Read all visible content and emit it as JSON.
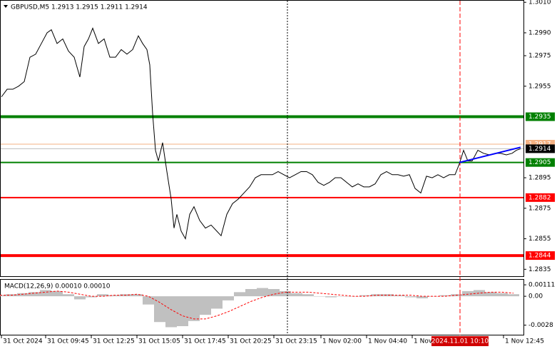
{
  "chart_data": {
    "type": "line",
    "title": "GBPUSD,M5  1.2913 1.2915 1.2911 1.2914",
    "xlim": [
      0,
      367
    ],
    "ylim": [
      1.283,
      1.30115
    ],
    "yticks": [
      {
        "value": 1.301,
        "label": "1.3010"
      },
      {
        "value": 1.299,
        "label": "1.2990"
      },
      1.2975,
      1.2955,
      1.2895,
      1.2875,
      1.2855,
      1.2835
    ],
    "xticks": [
      {
        "value": 1,
        "label": "31 Oct 2024"
      },
      {
        "value": 32,
        "label": "31 Oct 09:45"
      },
      {
        "value": 64,
        "label": "31 Oct 12:25"
      },
      {
        "value": 96,
        "label": "31 Oct 15:05"
      },
      {
        "value": 128,
        "label": "31 Oct 17:45"
      },
      {
        "value": 160,
        "label": "31 Oct 20:25"
      },
      {
        "value": 192,
        "label": "31 Oct 23:15"
      },
      {
        "value": 225,
        "label": "1 Nov 02:00"
      },
      {
        "value": 257,
        "label": "1 Nov 04:40"
      },
      {
        "value": 289,
        "label": "1 Nov"
      },
      {
        "value": 353,
        "label": "1 Nov 12:45"
      }
    ],
    "series": [
      {
        "color": "#000000",
        "x": [
          1,
          5,
          9,
          13,
          17,
          21,
          25,
          29,
          33,
          36,
          40,
          44,
          48,
          52,
          56,
          59,
          62,
          65,
          69,
          73,
          77,
          81,
          85,
          89,
          93,
          97,
          100,
          103,
          105,
          107,
          109,
          111,
          114,
          117,
          120,
          122,
          124,
          127,
          130,
          133,
          136,
          140,
          144,
          148,
          152,
          155,
          159,
          163,
          167,
          171,
          175,
          179,
          183,
          187,
          191,
          195,
          199,
          203,
          207,
          211,
          215,
          219,
          223,
          227,
          231,
          235,
          239,
          243,
          247,
          251,
          255,
          259,
          263,
          267,
          271,
          275,
          279,
          283,
          287,
          291,
          295,
          299,
          303,
          307,
          311,
          315,
          319,
          322,
          325,
          328,
          331,
          335,
          339,
          343,
          347,
          351,
          355,
          359,
          362,
          365
        ],
        "values": [
          1.2948,
          1.2953,
          1.2953,
          1.2955,
          1.2958,
          1.2974,
          1.2976,
          1.2983,
          1.299,
          1.2992,
          1.2983,
          1.2986,
          1.2978,
          1.2974,
          1.2961,
          1.2981,
          1.2986,
          1.2993,
          1.2983,
          1.2986,
          1.2974,
          1.2974,
          1.2979,
          1.2976,
          1.2979,
          1.2988,
          1.2983,
          1.2979,
          1.2969,
          1.2937,
          1.2913,
          1.2906,
          1.2918,
          1.2899,
          1.2881,
          1.2862,
          1.2871,
          1.286,
          1.2855,
          1.2871,
          1.2876,
          1.2867,
          1.2862,
          1.2864,
          1.286,
          1.2857,
          1.2871,
          1.2878,
          1.2881,
          1.2885,
          1.2889,
          1.2895,
          1.2897,
          1.2897,
          1.2897,
          1.2899,
          1.2897,
          1.2895,
          1.2897,
          1.2899,
          1.2899,
          1.2897,
          1.2892,
          1.289,
          1.2892,
          1.2895,
          1.2895,
          1.2892,
          1.2889,
          1.2891,
          1.2889,
          1.2889,
          1.2891,
          1.2897,
          1.2899,
          1.2897,
          1.2897,
          1.2896,
          1.2897,
          1.2888,
          1.2885,
          1.2896,
          1.2895,
          1.2897,
          1.2895,
          1.2897,
          1.2897,
          1.2904,
          1.2913,
          1.2906,
          1.2906,
          1.2913,
          1.2911,
          1.291,
          1.2911,
          1.2911,
          1.291,
          1.2911,
          1.2913,
          1.2914
        ]
      }
    ],
    "levels": [
      {
        "value": 1.2935,
        "color": "#008000",
        "width": 4
      },
      {
        "value": 1.2917,
        "color": "#f4b183",
        "width": 1
      },
      {
        "value": 1.2914,
        "color": "#000000",
        "width": 1
      },
      {
        "value": 1.2905,
        "color": "#008000",
        "width": 2
      },
      {
        "value": 1.2882,
        "color": "#ff0000",
        "width": 2
      },
      {
        "value": 1.2844,
        "color": "#ff0000",
        "width": 4
      }
    ],
    "vlines": [
      {
        "value": 201.5,
        "color": "#000000"
      },
      {
        "value": 322.5,
        "color": "#ff0000"
      }
    ],
    "trendline": {
      "color": "#0000ff",
      "x": [
        322,
        365
      ],
      "values": [
        1.2905,
        1.2915
      ]
    },
    "crosshair_label": "2024.11.01 10:10",
    "macd": {
      "title": "MACD(12,26,9) 0.00010 0.00010",
      "ylim": [
        -0.0038,
        0.0016
      ],
      "yticks": [
        0.00111,
        {
          "value": 0,
          "label": "0.00"
        },
        -0.0028
      ],
      "x": [
        0,
        8,
        16,
        24,
        32,
        40,
        48,
        56,
        64,
        72,
        80,
        88,
        96,
        104,
        112,
        120,
        128,
        136,
        144,
        152,
        160,
        168,
        176,
        184,
        192,
        200,
        208,
        216,
        224,
        232,
        240,
        248,
        256,
        264,
        272,
        280,
        288,
        296,
        304,
        312,
        320,
        328,
        336,
        344,
        352,
        360
      ],
      "histogram": {
        "color": "#c0c0c0",
        "values": [
          0.0001,
          0.0002,
          0.0003,
          0.0004,
          0.0006,
          0.0005,
          0.0002,
          -0.0003,
          -0.0001,
          0.0002,
          0.0001,
          0.0002,
          0.0002,
          -0.0008,
          -0.0025,
          -0.003,
          -0.0029,
          -0.0024,
          -0.0018,
          -0.0012,
          -0.0004,
          0.0004,
          0.0007,
          0.0008,
          0.0007,
          0.0005,
          0.0003,
          0.0002,
          0.0,
          -0.0001,
          0.0,
          0.0,
          0.0001,
          0.0002,
          0.0002,
          0.0001,
          -0.0001,
          -0.0002,
          0.0,
          0.0001,
          0.0002,
          0.0005,
          0.0006,
          0.0004,
          0.0003,
          0.0002
        ]
      },
      "signal": {
        "color": "#ff0000",
        "values": [
          0.0001,
          0.0001,
          0.0002,
          0.0003,
          0.0004,
          0.0005,
          0.0004,
          0.0002,
          0.0,
          0.0,
          0.0001,
          0.0001,
          0.0002,
          0.0,
          -0.0006,
          -0.0013,
          -0.0019,
          -0.0022,
          -0.0022,
          -0.0019,
          -0.0015,
          -0.001,
          -0.0005,
          -0.0001,
          0.0002,
          0.0004,
          0.0004,
          0.0004,
          0.0003,
          0.0002,
          0.0001,
          0.0,
          0.0,
          0.0001,
          0.0001,
          0.0001,
          0.0001,
          0.0,
          0.0,
          0.0,
          0.0001,
          0.0002,
          0.0003,
          0.0004,
          0.0004,
          0.0003
        ]
      }
    }
  }
}
